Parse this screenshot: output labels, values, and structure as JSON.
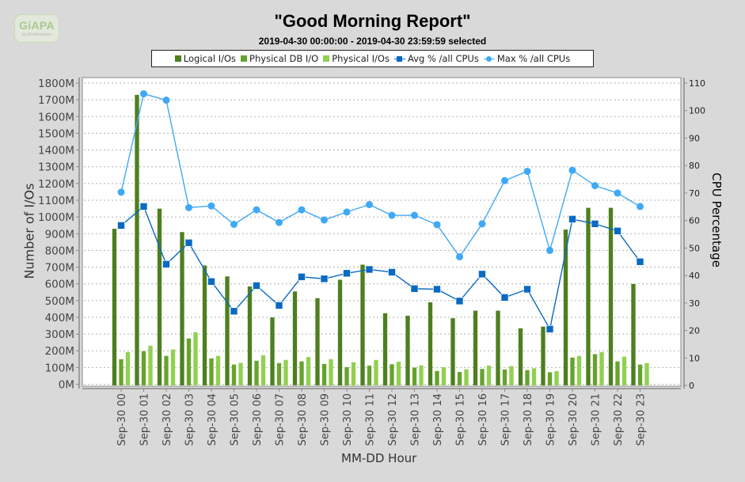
{
  "logo": {
    "main": "GiAPA",
    "sub": "by iPerformance"
  },
  "chart_data": {
    "type": "bar",
    "title": "\"Good Morning Report\"",
    "subtitle": "2019-04-30 00:00:00 - 2019-04-30 23:59:59 selected",
    "xlabel": "MM-DD Hour",
    "ylabel": "Number of I/Os",
    "ylabel_right": "CPU Percentage",
    "ylim": [
      0,
      1800
    ],
    "ylim_right": [
      0,
      110
    ],
    "yticks": [
      "0M",
      "100M",
      "200M",
      "300M",
      "400M",
      "500M",
      "600M",
      "700M",
      "800M",
      "900M",
      "1000M",
      "1100M",
      "1200M",
      "1300M",
      "1400M",
      "1500M",
      "1600M",
      "1700M",
      "1800M"
    ],
    "yticks_right": [
      "0",
      "10",
      "20",
      "30",
      "40",
      "50",
      "60",
      "70",
      "80",
      "90",
      "100",
      "110"
    ],
    "grid": true,
    "legend_position": "top",
    "categories": [
      "Sep-30 00",
      "Sep-30 01",
      "Sep-30 02",
      "Sep-30 03",
      "Sep-30 04",
      "Sep-30 05",
      "Sep-30 06",
      "Sep-30 07",
      "Sep-30 08",
      "Sep-30 09",
      "Sep-30 10",
      "Sep-30 11",
      "Sep-30 12",
      "Sep-30 13",
      "Sep-30 14",
      "Sep-30 15",
      "Sep-30 16",
      "Sep-30 17",
      "Sep-30 18",
      "Sep-30 19",
      "Sep-30 20",
      "Sep-30 21",
      "Sep-30 22",
      "Sep-30 23"
    ],
    "series": [
      {
        "name": "Logical I/Os",
        "type": "bar",
        "axis": "left",
        "unit": "M",
        "color": "#4d7f1f",
        "values": [
          930,
          1730,
          1050,
          910,
          710,
          645,
          585,
          400,
          555,
          515,
          625,
          715,
          425,
          410,
          490,
          395,
          440,
          440,
          335,
          345,
          925,
          1055,
          1055,
          600
        ]
      },
      {
        "name": "Physical DB I/O",
        "type": "bar",
        "axis": "left",
        "unit": "M",
        "color": "#66a32d",
        "values": [
          150,
          198,
          170,
          274,
          155,
          118,
          141,
          127,
          137,
          122,
          103,
          112,
          120,
          100,
          80,
          74,
          92,
          89,
          85,
          72,
          160,
          180,
          137,
          118
        ]
      },
      {
        "name": "Physical I/Os",
        "type": "bar",
        "axis": "left",
        "unit": "M",
        "color": "#92d050",
        "values": [
          193,
          231,
          208,
          311,
          170,
          128,
          173,
          146,
          163,
          150,
          132,
          146,
          135,
          113,
          103,
          90,
          112,
          109,
          96,
          79,
          170,
          193,
          165,
          127
        ]
      },
      {
        "name": "Avg % /all CPUs",
        "type": "line",
        "marker": "square",
        "axis": "right",
        "color": "#0a6ac2",
        "values": [
          58.2,
          65.1,
          44.1,
          51.9,
          37.8,
          27.0,
          36.3,
          29.1,
          39.5,
          38.8,
          40.8,
          42.2,
          41.2,
          35.2,
          35.0,
          30.7,
          40.5,
          32.0,
          35.0,
          20.5,
          60.5,
          58.8,
          56.2,
          45.0
        ]
      },
      {
        "name": "Max % /all CPUs",
        "type": "line",
        "marker": "circle",
        "axis": "right",
        "color": "#3fa9f5",
        "values": [
          70.3,
          106.1,
          103.8,
          64.7,
          65.3,
          58.6,
          63.9,
          59.3,
          63.9,
          60.2,
          63.1,
          65.8,
          61.9,
          61.9,
          58.5,
          46.8,
          58.8,
          74.5,
          77.9,
          49.1,
          78.3,
          72.7,
          70.0,
          65.1
        ]
      }
    ]
  }
}
